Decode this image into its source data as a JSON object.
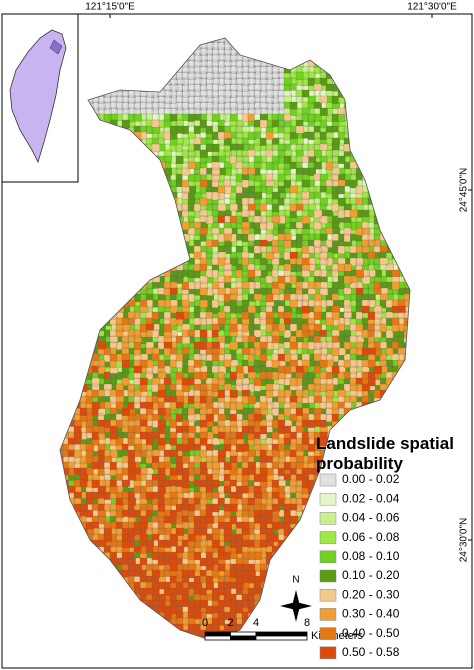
{
  "map": {
    "lon_labels": [
      "121°15'0\"E",
      "121°30'0\"E"
    ],
    "lat_labels": [
      "24°45'0\"N",
      "24°30'0\"N"
    ],
    "legend": {
      "title": "Landslide spatial probability",
      "items": [
        {
          "label": "0.00 - 0.02",
          "color": "#e1e1e1"
        },
        {
          "label": "0.02 - 0.04",
          "color": "#e6f5c8"
        },
        {
          "label": "0.04 - 0.06",
          "color": "#c8f08c"
        },
        {
          "label": "0.06 - 0.08",
          "color": "#a0e646"
        },
        {
          "label": "0.08 - 0.10",
          "color": "#6ed21e"
        },
        {
          "label": "0.10 - 0.20",
          "color": "#5a9a14"
        },
        {
          "label": "0.20 - 0.30",
          "color": "#f5c88c"
        },
        {
          "label": "0.30 - 0.40",
          "color": "#f0a032"
        },
        {
          "label": "0.40 - 0.50",
          "color": "#e67814"
        },
        {
          "label": "0.50 - 0.58",
          "color": "#dc4b0a"
        }
      ]
    },
    "scale_bar": {
      "ticks": [
        0,
        2,
        4,
        8
      ],
      "unit": "Kilometers"
    },
    "north_arrow": "N"
  }
}
